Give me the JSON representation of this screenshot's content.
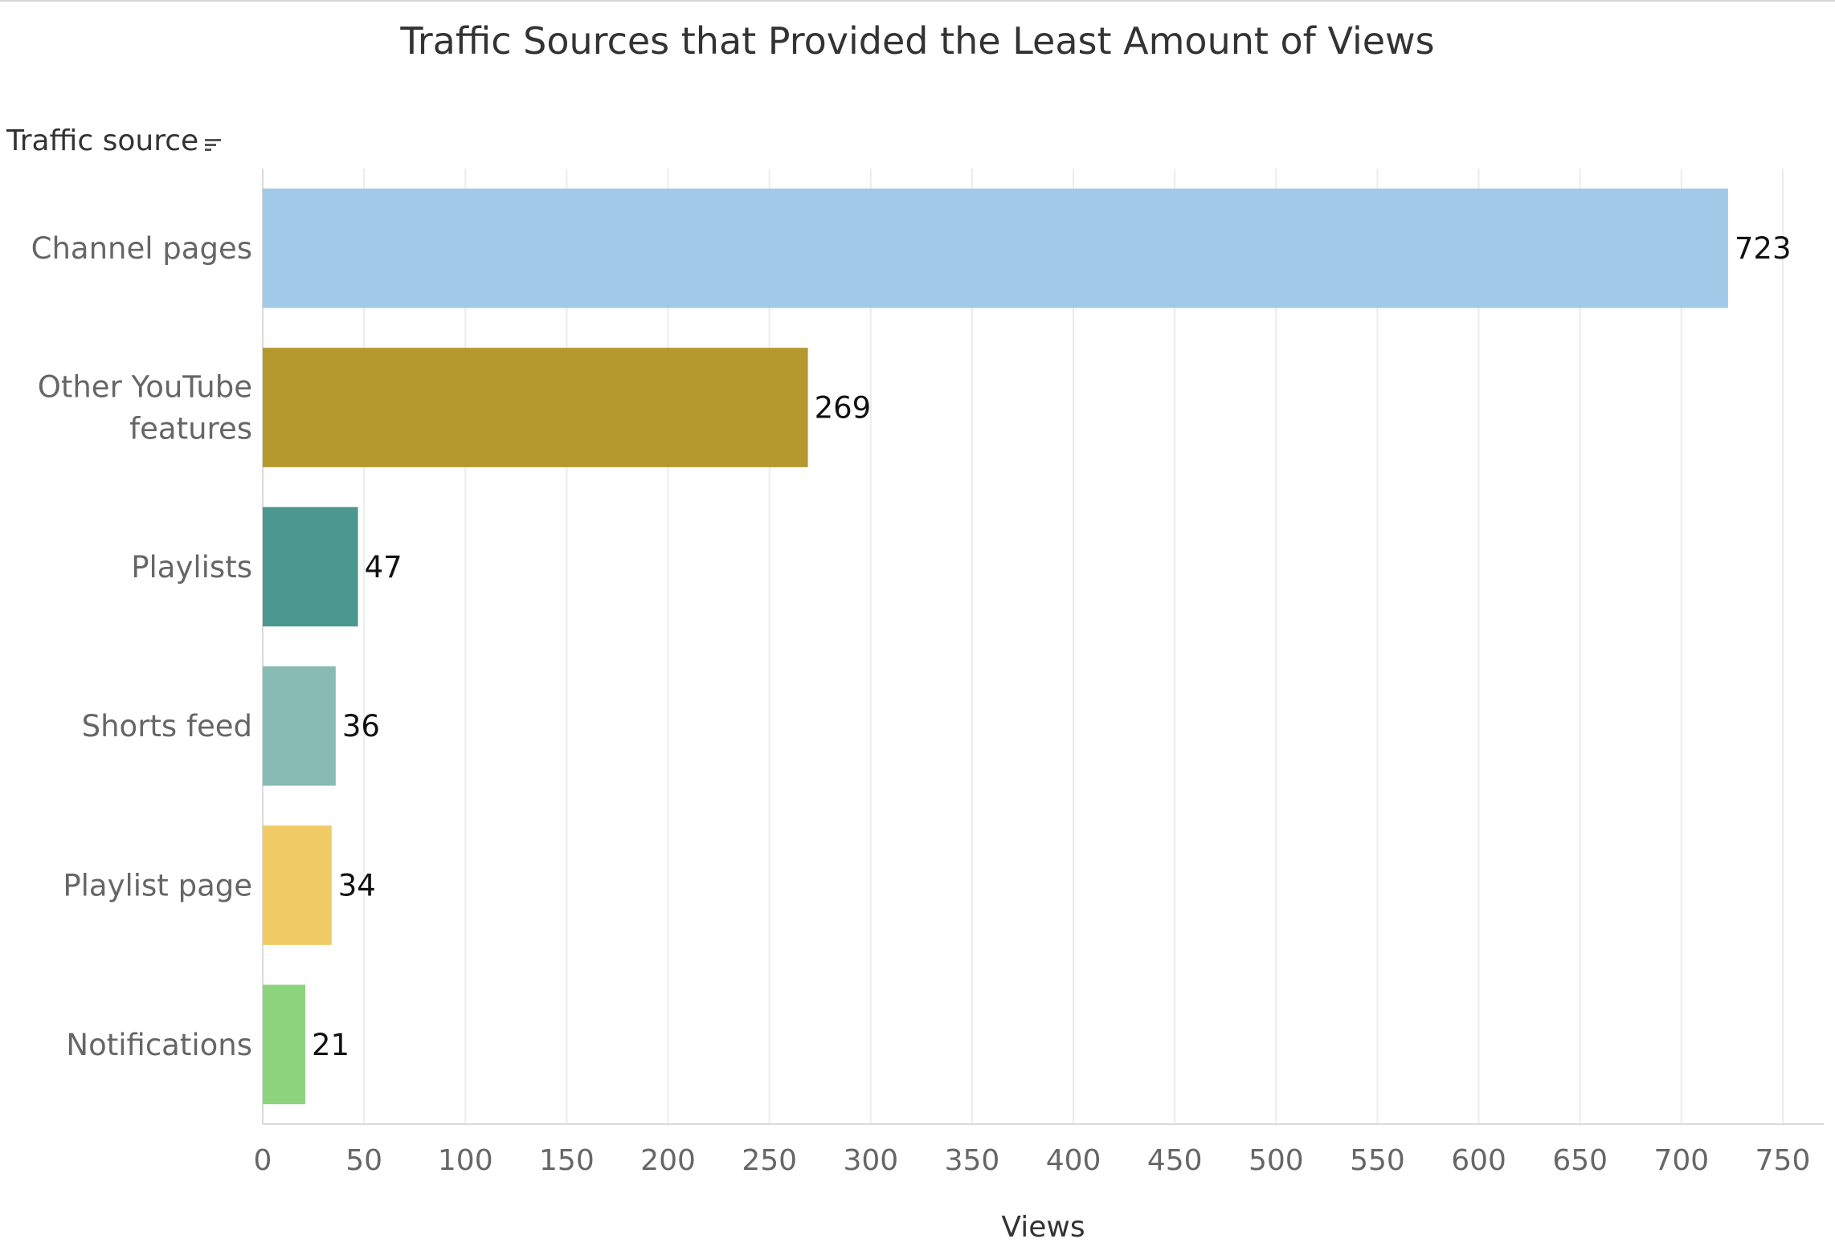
{
  "chart_data": {
    "type": "bar",
    "orientation": "horizontal",
    "title": "Traffic Sources that Provided the Least Amount of Views",
    "ylabel": "Traffic source",
    "xlabel": "Views",
    "categories": [
      [
        "Channel pages"
      ],
      [
        "Other YouTube",
        "features"
      ],
      [
        "Playlists"
      ],
      [
        "Shorts feed"
      ],
      [
        "Playlist page"
      ],
      [
        "Notifications"
      ]
    ],
    "values": [
      723,
      269,
      47,
      36,
      34,
      21
    ],
    "colors": [
      "#a1c9e8",
      "#b5992e",
      "#4c9891",
      "#88bbb3",
      "#f0cb65",
      "#8dd27d"
    ],
    "xlim": [
      0,
      775
    ],
    "xticks": [
      0,
      50,
      100,
      150,
      200,
      250,
      300,
      350,
      400,
      450,
      500,
      550,
      600,
      650,
      700,
      750
    ],
    "grid": true,
    "legend": "none"
  },
  "icons": {
    "sort": "sort-descending-icon"
  }
}
